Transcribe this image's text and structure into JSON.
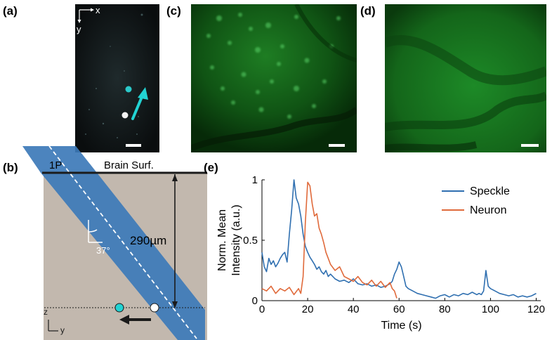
{
  "panels": {
    "a": {
      "letter": "(a)",
      "axis_x": "x",
      "axis_y": "y"
    },
    "b": {
      "letter": "(b)",
      "beam_label": "1P",
      "surface_label": "Brain Surf.",
      "depth_label": "290µm",
      "angle_label": "37°",
      "axis_z": "z",
      "axis_y": "y"
    },
    "c": {
      "letter": "(c)"
    },
    "d": {
      "letter": "(d)"
    },
    "e": {
      "letter": "(e)"
    }
  },
  "colors": {
    "speckle": "#2f6fb0",
    "neuron": "#e06a3b",
    "beam": "#3d79b8",
    "tissue": "#c2b8ae",
    "arrow_cyan": "#22d3d3",
    "green_fluor": "#2fb040"
  },
  "chart_data": {
    "type": "line",
    "xlabel": "Time (s)",
    "ylabel": "Norm. Mean\nIntensity (a.u.)",
    "ylabel_lines": [
      "Norm. Mean",
      "Intensity (a.u.)"
    ],
    "xlim": [
      0,
      122
    ],
    "ylim": [
      0,
      1
    ],
    "xticks": [
      0,
      20,
      40,
      60,
      80,
      100,
      120
    ],
    "yticks": [
      0,
      0.5,
      1
    ],
    "ytick_labels": [
      "0",
      "0.5",
      "1"
    ],
    "legend_position": "top-right",
    "series": [
      {
        "name": "Speckle",
        "x": [
          0,
          1,
          2,
          3,
          4,
          5,
          6,
          7,
          8,
          9,
          10,
          11,
          12,
          13,
          14,
          15,
          16,
          17,
          18,
          19,
          20,
          21,
          22,
          23,
          24,
          25,
          26,
          27,
          28,
          29,
          30,
          32,
          34,
          36,
          38,
          40,
          42,
          44,
          46,
          48,
          50,
          52,
          54,
          56,
          57,
          58,
          59,
          60,
          61,
          62,
          63,
          64,
          66,
          68,
          70,
          72,
          74,
          76,
          78,
          80,
          82,
          84,
          86,
          88,
          90,
          92,
          94,
          95,
          96,
          97,
          98,
          99,
          100,
          102,
          104,
          106,
          108,
          110,
          112,
          114,
          116,
          118,
          120
        ],
        "y": [
          0.4,
          0.28,
          0.24,
          0.35,
          0.3,
          0.33,
          0.28,
          0.31,
          0.35,
          0.38,
          0.4,
          0.32,
          0.55,
          0.75,
          1.0,
          0.85,
          0.8,
          0.7,
          0.55,
          0.45,
          0.4,
          0.36,
          0.33,
          0.3,
          0.26,
          0.28,
          0.24,
          0.22,
          0.25,
          0.2,
          0.22,
          0.18,
          0.16,
          0.17,
          0.15,
          0.18,
          0.14,
          0.13,
          0.14,
          0.12,
          0.13,
          0.11,
          0.12,
          0.14,
          0.16,
          0.22,
          0.26,
          0.32,
          0.28,
          0.2,
          0.12,
          0.1,
          0.08,
          0.06,
          0.05,
          0.04,
          0.03,
          0.02,
          0.04,
          0.05,
          0.03,
          0.05,
          0.04,
          0.06,
          0.05,
          0.07,
          0.05,
          0.06,
          0.05,
          0.08,
          0.25,
          0.12,
          0.1,
          0.08,
          0.06,
          0.05,
          0.04,
          0.05,
          0.03,
          0.04,
          0.03,
          0.04,
          0.06
        ]
      },
      {
        "name": "Neuron",
        "x": [
          0,
          2,
          4,
          6,
          8,
          10,
          12,
          14,
          16,
          17,
          18,
          19,
          20,
          21,
          22,
          23,
          24,
          25,
          26,
          27,
          28,
          29,
          30,
          32,
          34,
          36,
          38,
          40,
          42,
          44,
          46,
          48,
          50,
          52,
          54,
          56,
          57,
          58,
          59
        ],
        "y": [
          0.1,
          0.08,
          0.12,
          0.06,
          0.1,
          0.08,
          0.11,
          0.05,
          0.1,
          0.06,
          0.2,
          0.65,
          0.98,
          0.95,
          0.8,
          0.7,
          0.72,
          0.6,
          0.55,
          0.48,
          0.4,
          0.35,
          0.3,
          0.25,
          0.28,
          0.2,
          0.18,
          0.16,
          0.2,
          0.15,
          0.13,
          0.17,
          0.12,
          0.16,
          0.11,
          0.15,
          0.1,
          0.08,
          0.02
        ]
      }
    ]
  }
}
